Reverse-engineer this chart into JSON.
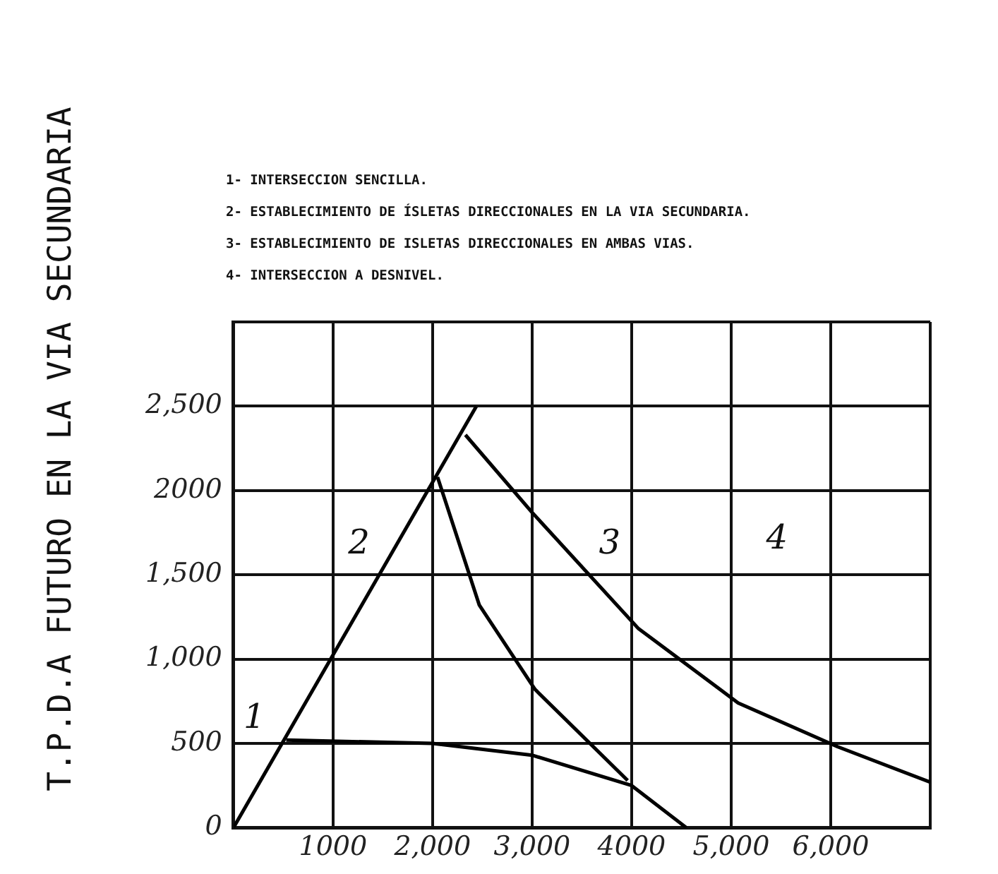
{
  "chart_data": {
    "type": "line",
    "ylabel": "T.P.D.A FUTURO EN LA VIA SECUNDARIA",
    "annotations": [
      "1- INTERSECCION SENCILLA.",
      "2- ESTABLECIMIENTO DE ÍSLETAS DIRECCIONALES EN LA VIA SECUNDARIA.",
      "3- ESTABLECIMIENTO DE ISLETAS DIRECCIONALES EN AMBAS VIAS.",
      "4- INTERSECCION A DESNIVEL.",
      "1",
      "2",
      "3",
      "4"
    ],
    "xlim": [
      0,
      7000
    ],
    "ylim": [
      0,
      3000
    ],
    "xticks": [
      {
        "value": 0,
        "label": null
      },
      {
        "value": 1000,
        "label": "1000"
      },
      {
        "value": 2000,
        "label": "2,000"
      },
      {
        "value": 3000,
        "label": "3,000"
      },
      {
        "value": 4000,
        "label": "4000"
      },
      {
        "value": 5000,
        "label": "5,000"
      },
      {
        "value": 6000,
        "label": "6,000"
      },
      {
        "value": 7000,
        "label": null
      }
    ],
    "yticks": [
      0,
      500,
      {
        "value": 1000,
        "label": "1,000"
      },
      {
        "value": 1500,
        "label": "1,500"
      },
      {
        "value": 2000,
        "label": "2000"
      },
      {
        "value": 2500,
        "label": "2,500"
      },
      {
        "value": 3000,
        "label": null
      }
    ],
    "grid": true,
    "legend": false,
    "marker": "none",
    "line_style": "solid",
    "series": [
      {
        "color": "#000000",
        "x": [
          0,
          2440
        ],
        "values": [
          0,
          2500
        ]
      },
      {
        "color": "#000000",
        "x": [
          530,
          2000,
          3000,
          4000,
          4550
        ],
        "values": [
          520,
          500,
          430,
          250,
          0
        ]
      },
      {
        "color": "#000000",
        "x": [
          2050,
          2470,
          3030,
          3960
        ],
        "values": [
          2080,
          1320,
          820,
          280
        ]
      },
      {
        "color": "#000000",
        "x": [
          2330,
          3000,
          4070,
          5070,
          6070,
          7000
        ],
        "values": [
          2330,
          1870,
          1180,
          740,
          480,
          270
        ]
      }
    ]
  }
}
